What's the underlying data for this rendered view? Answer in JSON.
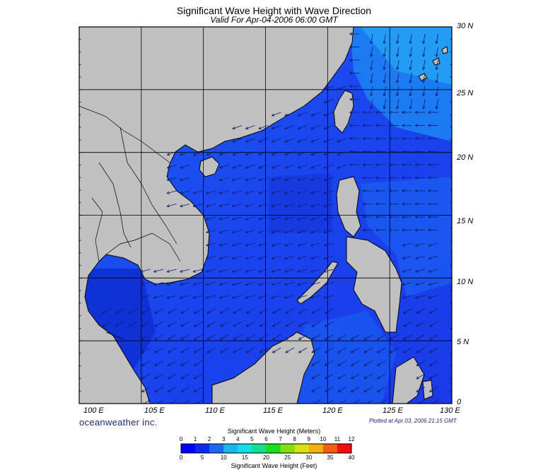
{
  "header": {
    "title": "Significant Wave Height with Wave Direction",
    "subtitle": "Valid For Apr-04-2006 06:00 GMT"
  },
  "map": {
    "lat_labels": [
      "30 N",
      "25 N",
      "20 N",
      "15 N",
      "10 N",
      "5 N",
      "0"
    ],
    "lon_labels": [
      "100 E",
      "105 E",
      "110 E",
      "115 E",
      "120 E",
      "125 E",
      "130 E"
    ],
    "lat_range": [
      0,
      30
    ],
    "lon_range": [
      100,
      130
    ],
    "land_color": "#c0c0c0",
    "water_color": "#1a48ee",
    "arrow_color": "#141c6a"
  },
  "branding": {
    "logo_text": "oceanweather inc.",
    "plotted_text": "Plotted at Apr 03, 2006 21:15 GMT"
  },
  "legend": {
    "meters_title": "Significant Wave Height (Meters)",
    "meters_ticks": [
      "0",
      "1",
      "2",
      "3",
      "4",
      "5",
      "6",
      "7",
      "8",
      "9",
      "10",
      "11",
      "12"
    ],
    "feet_title": "Significant Wave Height (Feet)",
    "feet_ticks": [
      "0",
      "5",
      "10",
      "15",
      "20",
      "25",
      "30",
      "35",
      "40"
    ],
    "colors": [
      "#0000ff",
      "#0a2cf0",
      "#1a6af0",
      "#1ab4f0",
      "#10e0e6",
      "#10e08c",
      "#18e018",
      "#80e010",
      "#d8e010",
      "#f0b010",
      "#f06010",
      "#f01010"
    ]
  }
}
